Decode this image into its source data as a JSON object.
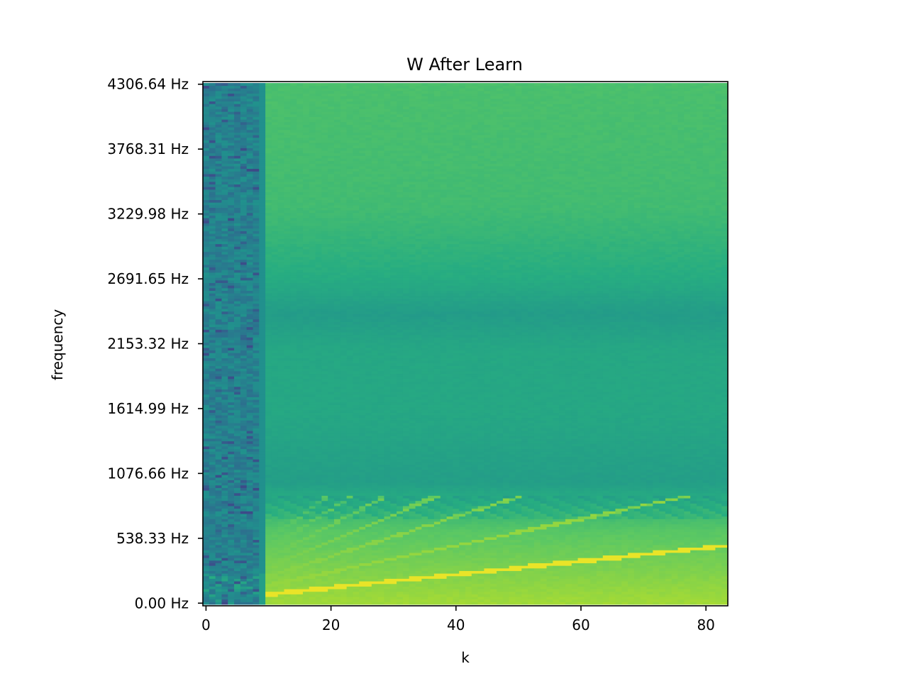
{
  "chart_data": {
    "type": "heatmap",
    "title": "W After Learn",
    "xlabel": "k",
    "ylabel": "frequency",
    "colormap": "viridis",
    "xlim": [
      -0.5,
      83.5
    ],
    "ylim": [
      -22.0,
      4328.6
    ],
    "x_ticks": [
      0,
      20,
      40,
      60,
      80
    ],
    "y_ticks": [
      {
        "value": 0.0,
        "label": "0.00 Hz"
      },
      {
        "value": 538.33,
        "label": "538.33 Hz"
      },
      {
        "value": 1076.66,
        "label": "1076.66 Hz"
      },
      {
        "value": 1614.99,
        "label": "1614.99 Hz"
      },
      {
        "value": 2153.32,
        "label": "2153.32 Hz"
      },
      {
        "value": 2691.65,
        "label": "2691.65 Hz"
      },
      {
        "value": 3229.98,
        "label": "3229.98 Hz"
      },
      {
        "value": 3768.31,
        "label": "3768.31 Hz"
      },
      {
        "value": 4306.64,
        "label": "4306.64 Hz"
      }
    ],
    "num_components": 84,
    "frequency_bin_hz": 21.53,
    "num_frequency_bins": 201,
    "noisy_components_range": [
      0,
      8
    ],
    "flat_component_index": 9,
    "value_range": [
      0,
      1
    ],
    "band_levels": [
      {
        "freq": 0,
        "value": 0.86
      },
      {
        "freq": 600,
        "value": 0.74
      },
      {
        "freq": 1000,
        "value": 0.56
      },
      {
        "freq": 1600,
        "value": 0.6
      },
      {
        "freq": 2100,
        "value": 0.6
      },
      {
        "freq": 2400,
        "value": 0.55
      },
      {
        "freq": 2700,
        "value": 0.62
      },
      {
        "freq": 3300,
        "value": 0.69
      },
      {
        "freq": 4330,
        "value": 0.71
      }
    ]
  }
}
